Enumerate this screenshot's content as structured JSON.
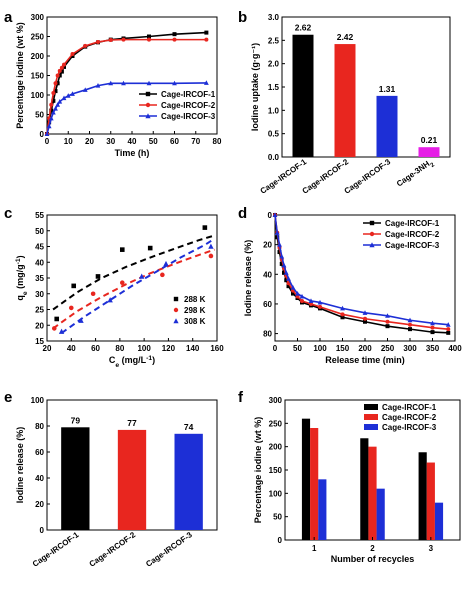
{
  "figure": {
    "panels": [
      {
        "id": "a",
        "letter": "a",
        "chart_data": {
          "type": "line",
          "xlabel": "Time (h)",
          "ylabel": "Percentage iodine (wt %)",
          "xlim": [
            0,
            80
          ],
          "ylim": [
            0,
            300
          ],
          "xticks": [
            0,
            10,
            20,
            30,
            40,
            50,
            60,
            70,
            80
          ],
          "yticks": [
            0,
            50,
            100,
            150,
            200,
            250,
            300
          ],
          "legend_position": "lower-right",
          "series": [
            {
              "name": "Cage-IRCOF-1",
              "color": "#000000",
              "marker": "square",
              "x": [
                0,
                1,
                2,
                3,
                4,
                5,
                6,
                7,
                8,
                12,
                18,
                24,
                30,
                36,
                48,
                60,
                75
              ],
              "y": [
                0,
                30,
                60,
                85,
                110,
                130,
                150,
                160,
                172,
                200,
                224,
                235,
                242,
                245,
                250,
                256,
                260
              ]
            },
            {
              "name": "Cage-IRCOF-2",
              "color": "#e8261f",
              "marker": "circle",
              "x": [
                0,
                1,
                2,
                3,
                4,
                5,
                6,
                7,
                8,
                12,
                18,
                24,
                30,
                36,
                48,
                60,
                75
              ],
              "y": [
                0,
                40,
                75,
                105,
                130,
                150,
                162,
                170,
                178,
                205,
                226,
                236,
                241,
                242,
                242,
                242,
                242
              ]
            },
            {
              "name": "Cage-IRCOF-3",
              "color": "#1d2fd6",
              "marker": "triangle",
              "x": [
                0,
                1,
                2,
                3,
                4,
                5,
                6,
                8,
                10,
                12,
                18,
                24,
                30,
                36,
                48,
                60,
                75
              ],
              "y": [
                0,
                20,
                40,
                55,
                65,
                75,
                83,
                92,
                98,
                103,
                113,
                124,
                130,
                130,
                130,
                130,
                131
              ]
            }
          ]
        }
      },
      {
        "id": "b",
        "letter": "b",
        "chart_data": {
          "type": "bar",
          "xlabel": "",
          "ylabel": "Iodine uptake (g·g⁻¹)",
          "ylim": [
            0,
            3.0
          ],
          "yticks": [
            0.0,
            0.5,
            1.0,
            1.5,
            2.0,
            2.5,
            3.0
          ],
          "categories": [
            "Cage-IRCOF-1",
            "Cage-IRCOF-2",
            "Cage-IRCOF-3",
            "Cage-3NH2"
          ],
          "category_label_parts": [
            [
              {
                "t": "Cage-IRCOF-1"
              }
            ],
            [
              {
                "t": "Cage-IRCOF-2"
              }
            ],
            [
              {
                "t": "Cage-IRCOF-3"
              }
            ],
            [
              {
                "t": "Cage-3NH"
              },
              {
                "t": "2",
                "sub": true
              }
            ]
          ],
          "category_colors": [
            "#000000",
            "#e8261f",
            "#1d2fd6",
            "#e61ee6"
          ],
          "values": [
            2.62,
            2.42,
            1.31,
            0.21
          ],
          "value_labels": [
            "2.62",
            "2.42",
            "1.31",
            "0.21"
          ]
        }
      },
      {
        "id": "c",
        "letter": "c",
        "chart_data": {
          "type": "scatter",
          "xlabel": "Ce (mg/L⁻¹)",
          "ylabel": "qe (mg/g⁻¹)",
          "ylabel_parts": [
            {
              "t": "q"
            },
            {
              "t": "e",
              "sub": true
            },
            {
              "t": " (mg/g"
            },
            {
              "t": "-1",
              "sup": true
            },
            {
              "t": ")"
            }
          ],
          "xlabel_parts": [
            {
              "t": "C"
            },
            {
              "t": "e",
              "sub": true
            },
            {
              "t": " (mg/L"
            },
            {
              "t": "-1",
              "sup": true
            },
            {
              "t": ")"
            }
          ],
          "xlim": [
            20,
            160
          ],
          "ylim": [
            15,
            55
          ],
          "xticks": [
            20,
            40,
            60,
            80,
            100,
            120,
            140,
            160
          ],
          "yticks": [
            15,
            20,
            25,
            30,
            35,
            40,
            45,
            50,
            55
          ],
          "legend_position": "lower-right",
          "series": [
            {
              "name": "288 K",
              "color": "#000000",
              "marker": "square",
              "x": [
                28,
                42,
                62,
                82,
                105,
                150
              ],
              "y": [
                22,
                32.5,
                35.5,
                44,
                44.5,
                51
              ],
              "fit_x": [
                25,
                45,
                65,
                85,
                105,
                125,
                145,
                158
              ],
              "fit_y": [
                25,
                30.5,
                35,
                38.5,
                41.5,
                44.3,
                47,
                48.5
              ]
            },
            {
              "name": "298 K",
              "color": "#e8261f",
              "marker": "circle",
              "x": [
                26,
                40,
                58,
                82,
                115,
                155
              ],
              "y": [
                19,
                25.5,
                30,
                33.5,
                36,
                42
              ],
              "fit_x": [
                25,
                45,
                65,
                85,
                105,
                125,
                145,
                158
              ],
              "fit_y": [
                19,
                24.5,
                29,
                33,
                36.5,
                39.5,
                42.3,
                44
              ]
            },
            {
              "name": "308 K",
              "color": "#1d2fd6",
              "marker": "triangle",
              "x": [
                32,
                48,
                72,
                98,
                118,
                155
              ],
              "y": [
                18,
                21.5,
                28,
                35.5,
                39.5,
                45
              ],
              "fit_x": [
                32,
                50,
                70,
                90,
                110,
                130,
                150,
                158
              ],
              "fit_y": [
                17.5,
                22.5,
                27.5,
                32.5,
                37,
                41.5,
                45.5,
                47.5
              ]
            }
          ]
        }
      },
      {
        "id": "d",
        "letter": "d",
        "chart_data": {
          "type": "line",
          "xlabel": "Release time (min)",
          "ylabel": "Iodine release (%)",
          "xlim": [
            0,
            400
          ],
          "ylim": [
            0,
            85
          ],
          "y_inverted": true,
          "xticks": [
            0,
            50,
            100,
            150,
            200,
            250,
            300,
            350,
            400
          ],
          "yticks": [
            0,
            20,
            40,
            60,
            80
          ],
          "legend_position": "top-right",
          "series": [
            {
              "name": "Cage-IRCOF-1",
              "color": "#000000",
              "marker": "square",
              "x": [
                0,
                5,
                10,
                15,
                20,
                25,
                30,
                40,
                50,
                60,
                80,
                100,
                150,
                200,
                250,
                300,
                350,
                385
              ],
              "y": [
                0,
                15,
                25,
                33,
                39,
                44,
                48,
                53,
                56,
                59,
                61,
                63,
                69,
                72,
                75,
                77,
                79,
                79.5
              ]
            },
            {
              "name": "Cage-IRCOF-2",
              "color": "#e8261f",
              "marker": "circle",
              "x": [
                0,
                5,
                10,
                15,
                20,
                25,
                30,
                40,
                50,
                60,
                80,
                100,
                150,
                200,
                250,
                300,
                350,
                385
              ],
              "y": [
                0,
                12,
                22,
                30,
                36,
                41,
                46,
                51,
                55,
                58,
                60,
                62,
                67,
                70,
                72,
                74,
                76,
                77
              ]
            },
            {
              "name": "Cage-IRCOF-3",
              "color": "#1d2fd6",
              "marker": "triangle",
              "x": [
                0,
                5,
                10,
                15,
                20,
                25,
                30,
                40,
                50,
                60,
                80,
                100,
                150,
                200,
                250,
                300,
                350,
                385
              ],
              "y": [
                0,
                12,
                20,
                28,
                34,
                39,
                43,
                49,
                53,
                55,
                58,
                59,
                63,
                66,
                68,
                71,
                73,
                74
              ]
            }
          ]
        }
      },
      {
        "id": "e",
        "letter": "e",
        "chart_data": {
          "type": "bar",
          "xlabel": "",
          "ylabel": "Iodine release (%)",
          "ylim": [
            0,
            100
          ],
          "yticks": [
            0,
            20,
            40,
            60,
            80,
            100
          ],
          "categories": [
            "Cage-IRCOF-1",
            "Cage-IRCOF-2",
            "Cage-IRCOF-3"
          ],
          "category_colors": [
            "#000000",
            "#e8261f",
            "#1d2fd6"
          ],
          "values": [
            79,
            77,
            74
          ],
          "value_labels": [
            "79",
            "77",
            "74"
          ]
        }
      },
      {
        "id": "f",
        "letter": "f",
        "chart_data": {
          "type": "bar",
          "xlabel": "Number of recycles",
          "ylabel": "Percentage iodine (wt %)",
          "ylim": [
            0,
            300
          ],
          "yticks": [
            0,
            50,
            100,
            150,
            200,
            250,
            300
          ],
          "categories": [
            "1",
            "2",
            "3"
          ],
          "legend_position": "top-right",
          "series": [
            {
              "name": "Cage-IRCOF-1",
              "color": "#000000",
              "values": [
                260,
                218,
                188
              ]
            },
            {
              "name": "Cage-IRCOF-2",
              "color": "#e8261f",
              "values": [
                240,
                200,
                166
              ]
            },
            {
              "name": "Cage-IRCOF-3",
              "color": "#1d2fd6",
              "values": [
                130,
                110,
                80
              ]
            }
          ]
        }
      }
    ]
  }
}
